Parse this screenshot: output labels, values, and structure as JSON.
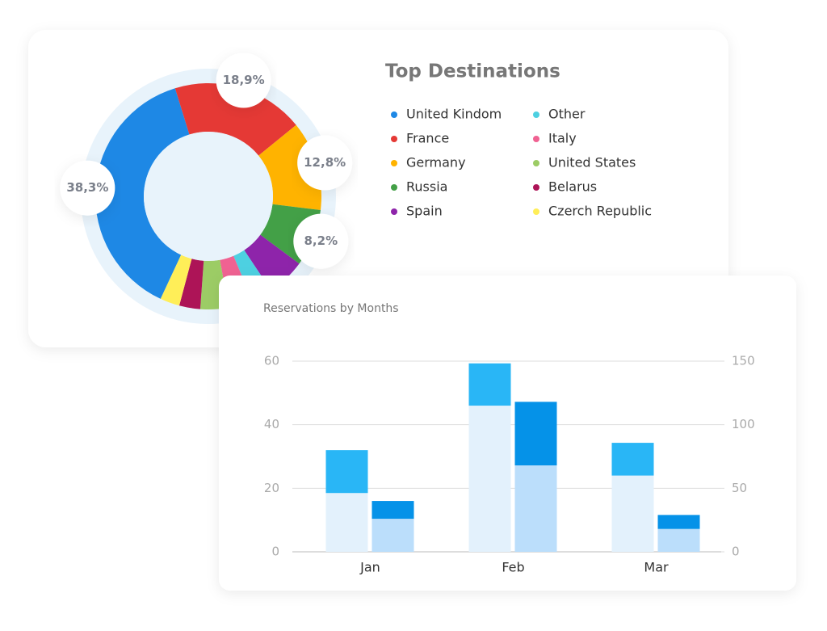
{
  "chart_data": [
    {
      "type": "pie",
      "title": "Top Destinations",
      "categories": [
        "United Kindom",
        "France",
        "Germany",
        "Russia",
        "Spain",
        "Other",
        "Italy",
        "United States",
        "Belarus",
        "Czerch Republic"
      ],
      "values": [
        38.3,
        18.9,
        12.8,
        8.2,
        5.5,
        3,
        3.5,
        4,
        3,
        2.8
      ],
      "value_labels": [
        "38,3%",
        "18,9%",
        "12,8%",
        "8,2%",
        null,
        null,
        null,
        null,
        null,
        null
      ],
      "colors": [
        "#1e88e5",
        "#e53935",
        "#ffb300",
        "#43a047",
        "#8e24aa",
        "#4dd0e1",
        "#f06292",
        "#9ccc65",
        "#ad1457",
        "#ffee58"
      ]
    },
    {
      "type": "bar",
      "title": "Reservations by Months",
      "categories": [
        "Jan",
        "Feb",
        "Mar"
      ],
      "series": [
        {
          "color": "#e3f1fc",
          "stack": "a",
          "values": [
            18.5,
            46,
            24
          ]
        },
        {
          "color": "#29b6f6",
          "stack": "a",
          "values": [
            13.5,
            13.3,
            10.3
          ]
        },
        {
          "color": "#bbdefb",
          "stack": "b",
          "axis": "y2",
          "values": [
            26,
            68,
            18
          ]
        },
        {
          "color": "#0592e8",
          "stack": "b",
          "axis": "y2",
          "values": [
            14,
            50,
            11
          ]
        }
      ],
      "ylim": [
        0,
        60
      ],
      "yticks": [
        0,
        20,
        40,
        60
      ],
      "y2lim": [
        0,
        150
      ],
      "y2ticks": [
        0,
        50,
        100,
        150
      ],
      "grid": true
    }
  ]
}
